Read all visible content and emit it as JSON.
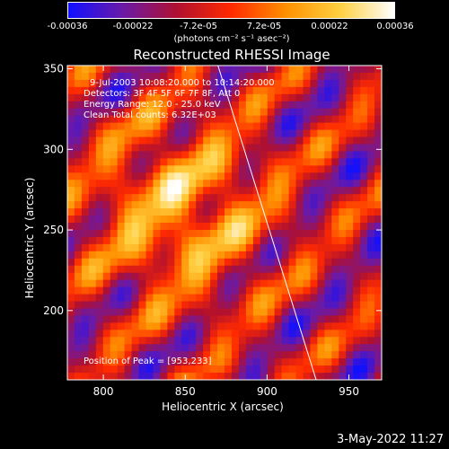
{
  "colorbar": {
    "ticks": [
      "-0.00036",
      "-0.00022",
      "-7.2e-05",
      "7.2e-05",
      "0.00022",
      "0.00036"
    ],
    "units": "(photons cm⁻² s⁻¹ asec⁻²)",
    "colors": [
      "#1010ff",
      "#6a1aa8",
      "#b01030",
      "#ff2a00",
      "#ff9000",
      "#ffd040",
      "#ffffff"
    ]
  },
  "info": {
    "time_range": "9-Jul-2003 10:08:20.000 to 10:14:20.000",
    "detectors": "Detectors: 3F 4F 5F 6F 7F 8F, Att 0",
    "energy": "Energy Range: 12.0 - 25.0 keV",
    "clean": "Clean     Total counts: 6.32E+03",
    "peak": "Position of Peak = [953,233]"
  },
  "timestamp": "3-May-2022 11:27",
  "chart_data": {
    "type": "heatmap",
    "title": "Reconstructed RHESSI Image",
    "xlabel": "Heliocentric X (arcsec)",
    "ylabel": "Heliocentric Y (arcsec)",
    "xlim": [
      778,
      970
    ],
    "ylim": [
      157,
      352
    ],
    "xticks": [
      800,
      850,
      900,
      950
    ],
    "yticks": [
      200,
      250,
      300,
      350
    ],
    "colorbar_range": [
      -0.00036,
      0.00036
    ],
    "limb_line": [
      [
        870,
        352
      ],
      [
        930,
        157
      ]
    ],
    "peak": [
      953,
      233
    ]
  }
}
